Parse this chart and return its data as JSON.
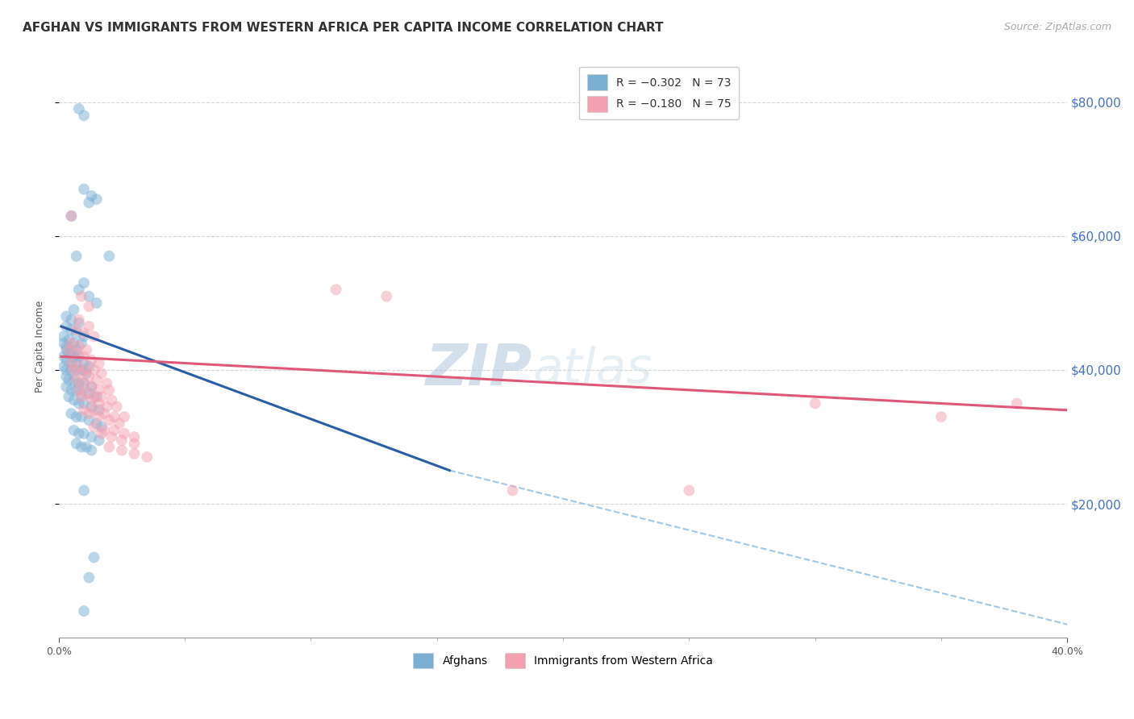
{
  "title": "AFGHAN VS IMMIGRANTS FROM WESTERN AFRICA PER CAPITA INCOME CORRELATION CHART",
  "source": "Source: ZipAtlas.com",
  "ylabel": "Per Capita Income",
  "ytick_labels": [
    "$20,000",
    "$40,000",
    "$60,000",
    "$80,000"
  ],
  "ytick_values": [
    20000,
    40000,
    60000,
    80000
  ],
  "xlim": [
    0.0,
    0.4
  ],
  "ylim": [
    0,
    87000
  ],
  "legend_label_afghans": "Afghans",
  "legend_label_western_africa": "Immigrants from Western Africa",
  "blue_scatter": [
    [
      0.008,
      79000
    ],
    [
      0.01,
      78000
    ],
    [
      0.01,
      67000
    ],
    [
      0.013,
      66000
    ],
    [
      0.015,
      65500
    ],
    [
      0.012,
      65000
    ],
    [
      0.005,
      63000
    ],
    [
      0.007,
      57000
    ],
    [
      0.02,
      57000
    ],
    [
      0.01,
      53000
    ],
    [
      0.008,
      52000
    ],
    [
      0.012,
      51000
    ],
    [
      0.015,
      50000
    ],
    [
      0.006,
      49000
    ],
    [
      0.003,
      48000
    ],
    [
      0.005,
      47500
    ],
    [
      0.008,
      47000
    ],
    [
      0.003,
      46500
    ],
    [
      0.005,
      46000
    ],
    [
      0.007,
      45500
    ],
    [
      0.01,
      45000
    ],
    [
      0.002,
      45000
    ],
    [
      0.004,
      44500
    ],
    [
      0.006,
      44000
    ],
    [
      0.009,
      44000
    ],
    [
      0.002,
      44000
    ],
    [
      0.003,
      43500
    ],
    [
      0.005,
      43000
    ],
    [
      0.007,
      43000
    ],
    [
      0.003,
      43000
    ],
    [
      0.004,
      42500
    ],
    [
      0.006,
      42000
    ],
    [
      0.008,
      42000
    ],
    [
      0.002,
      42000
    ],
    [
      0.003,
      41500
    ],
    [
      0.005,
      41000
    ],
    [
      0.007,
      41000
    ],
    [
      0.01,
      41000
    ],
    [
      0.012,
      40500
    ],
    [
      0.002,
      40500
    ],
    [
      0.003,
      40000
    ],
    [
      0.005,
      40000
    ],
    [
      0.007,
      40000
    ],
    [
      0.009,
      40000
    ],
    [
      0.011,
      39500
    ],
    [
      0.003,
      39000
    ],
    [
      0.004,
      38500
    ],
    [
      0.006,
      38500
    ],
    [
      0.008,
      38000
    ],
    [
      0.01,
      38000
    ],
    [
      0.013,
      37500
    ],
    [
      0.003,
      37500
    ],
    [
      0.005,
      37000
    ],
    [
      0.007,
      37000
    ],
    [
      0.009,
      36500
    ],
    [
      0.012,
      36500
    ],
    [
      0.015,
      36000
    ],
    [
      0.004,
      36000
    ],
    [
      0.006,
      35500
    ],
    [
      0.008,
      35000
    ],
    [
      0.01,
      35000
    ],
    [
      0.013,
      34500
    ],
    [
      0.016,
      34000
    ],
    [
      0.005,
      33500
    ],
    [
      0.007,
      33000
    ],
    [
      0.009,
      33000
    ],
    [
      0.012,
      32500
    ],
    [
      0.015,
      32000
    ],
    [
      0.017,
      31500
    ],
    [
      0.006,
      31000
    ],
    [
      0.008,
      30500
    ],
    [
      0.01,
      30500
    ],
    [
      0.013,
      30000
    ],
    [
      0.016,
      29500
    ],
    [
      0.007,
      29000
    ],
    [
      0.009,
      28500
    ],
    [
      0.011,
      28500
    ],
    [
      0.013,
      28000
    ],
    [
      0.01,
      22000
    ],
    [
      0.014,
      12000
    ],
    [
      0.012,
      9000
    ],
    [
      0.01,
      4000
    ]
  ],
  "pink_scatter": [
    [
      0.005,
      63000
    ],
    [
      0.009,
      51000
    ],
    [
      0.012,
      49500
    ],
    [
      0.008,
      47500
    ],
    [
      0.012,
      46500
    ],
    [
      0.007,
      46000
    ],
    [
      0.01,
      45500
    ],
    [
      0.014,
      45000
    ],
    [
      0.005,
      44000
    ],
    [
      0.008,
      43500
    ],
    [
      0.011,
      43000
    ],
    [
      0.004,
      43000
    ],
    [
      0.007,
      42500
    ],
    [
      0.01,
      42000
    ],
    [
      0.013,
      41500
    ],
    [
      0.016,
      41000
    ],
    [
      0.005,
      41000
    ],
    [
      0.008,
      40500
    ],
    [
      0.011,
      40000
    ],
    [
      0.014,
      40000
    ],
    [
      0.017,
      39500
    ],
    [
      0.006,
      40000
    ],
    [
      0.009,
      39500
    ],
    [
      0.012,
      39000
    ],
    [
      0.015,
      38500
    ],
    [
      0.019,
      38000
    ],
    [
      0.007,
      38500
    ],
    [
      0.01,
      38000
    ],
    [
      0.013,
      37500
    ],
    [
      0.016,
      37000
    ],
    [
      0.02,
      37000
    ],
    [
      0.008,
      37000
    ],
    [
      0.011,
      36500
    ],
    [
      0.014,
      36000
    ],
    [
      0.017,
      36000
    ],
    [
      0.021,
      35500
    ],
    [
      0.009,
      36000
    ],
    [
      0.013,
      35500
    ],
    [
      0.016,
      35000
    ],
    [
      0.019,
      34500
    ],
    [
      0.023,
      34500
    ],
    [
      0.01,
      34000
    ],
    [
      0.014,
      34000
    ],
    [
      0.018,
      33500
    ],
    [
      0.022,
      33000
    ],
    [
      0.026,
      33000
    ],
    [
      0.012,
      33500
    ],
    [
      0.016,
      33000
    ],
    [
      0.02,
      32500
    ],
    [
      0.024,
      32000
    ],
    [
      0.014,
      31500
    ],
    [
      0.018,
      31000
    ],
    [
      0.022,
      31000
    ],
    [
      0.026,
      30500
    ],
    [
      0.03,
      30000
    ],
    [
      0.017,
      30500
    ],
    [
      0.021,
      30000
    ],
    [
      0.025,
      29500
    ],
    [
      0.03,
      29000
    ],
    [
      0.02,
      28500
    ],
    [
      0.025,
      28000
    ],
    [
      0.03,
      27500
    ],
    [
      0.035,
      27000
    ],
    [
      0.11,
      52000
    ],
    [
      0.13,
      51000
    ],
    [
      0.18,
      22000
    ],
    [
      0.25,
      22000
    ],
    [
      0.3,
      35000
    ],
    [
      0.35,
      33000
    ],
    [
      0.38,
      35000
    ]
  ],
  "blue_line_x": [
    0.001,
    0.155
  ],
  "blue_line_y": [
    46500,
    25000
  ],
  "pink_line_x": [
    0.001,
    0.4
  ],
  "pink_line_y": [
    42000,
    34000
  ],
  "dashed_line_x": [
    0.155,
    0.4
  ],
  "dashed_line_y": [
    25000,
    2000
  ],
  "background_color": "#ffffff",
  "grid_color": "#d8d8d8",
  "scatter_size": 100,
  "blue_color": "#7bafd4",
  "pink_color": "#f4a0b0",
  "blue_line_color": "#2a5fa8",
  "pink_line_color": "#e05878",
  "dashed_line_color": "#a0c8e8",
  "title_fontsize": 11,
  "source_fontsize": 9,
  "label_fontsize": 9,
  "tick_fontsize": 9,
  "legend_fontsize": 10,
  "watermark_zip": "ZIP",
  "watermark_atlas": "atlas",
  "watermark_fontsize": 52,
  "right_tick_color": "#4472c4"
}
